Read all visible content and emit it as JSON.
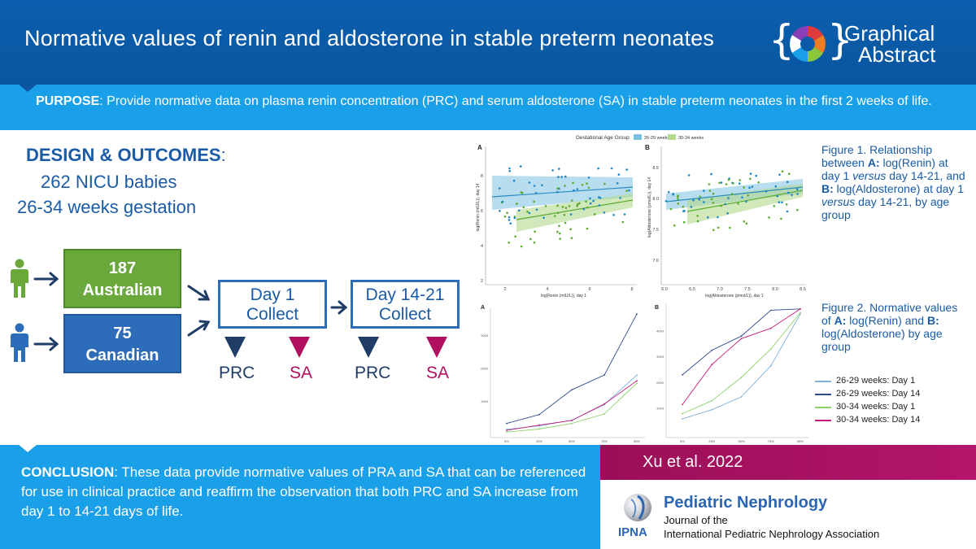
{
  "header": {
    "title": "Normative values of renin and aldosterone in stable preterm neonates",
    "brand_line1": "Graphical",
    "brand_line2": "Abstract"
  },
  "purpose": {
    "label": "PURPOSE",
    "text": ": Provide normative data on plasma renin concentration (PRC) and serum aldosterone (SA) in stable preterm neonates in the first 2 weeks of life."
  },
  "design": {
    "title": "DESIGN & OUTCOMES",
    "colon": ":",
    "line1": "262 NICU babies",
    "line2": "26-34 weeks gestation"
  },
  "cohorts": {
    "australian": {
      "count": "187",
      "label": "Australian"
    },
    "canadian": {
      "count": "75",
      "label": "Canadian"
    }
  },
  "collections": [
    {
      "line1": "Day 1",
      "line2": "Collect"
    },
    {
      "line1": "Day 14-21",
      "line2": "Collect"
    }
  ],
  "measures": [
    "PRC",
    "SA",
    "PRC",
    "SA"
  ],
  "figure1": {
    "legend_title": "Gestational Age Group",
    "legend_items": [
      "26-29 weeks",
      "30-34 weeks"
    ],
    "caption": {
      "p1": "Figure 1. Relationship between ",
      "a": "A:",
      "p2": " log(Renin) at day 1 ",
      "versus1": "versus",
      "p3": " day 14-21, and ",
      "b": "B:",
      "p4": " log(Aldosterone) at day 1 ",
      "versus2": "versus",
      "p5": " day 14-21, by age group"
    },
    "panelA": {
      "label": "A",
      "xlabel": "log(Renin (mIU/L)), day 1",
      "ylabel": "log(Renin (mIU/L)), day 14",
      "xticks": [
        "2",
        "4",
        "6",
        "8"
      ],
      "yticks": [
        "2",
        "4",
        "6",
        "8"
      ]
    },
    "panelB": {
      "label": "B",
      "xlabel": "log(Aldosterone (pmol/L)), day 1",
      "ylabel": "log(Aldosterone (pmol/L)), day 14",
      "xticks": [
        "6.0",
        "6.5",
        "7.0",
        "7.5",
        "8.0",
        "8.5"
      ],
      "yticks": [
        "7.0",
        "7.5",
        "8.0",
        "8.5"
      ]
    }
  },
  "figure2": {
    "caption": {
      "p1": "Figure 2. Normative values of ",
      "a": "A:",
      "p2": " log(Renin) and ",
      "b": "B:",
      "p3": " log(Aldosterone) by age group"
    },
    "panelA_label": "A",
    "panelB_label": "B",
    "legend": [
      {
        "name": "26-29 weeks:  Day 1",
        "color": "#7fb0dc"
      },
      {
        "name": "26-29 weeks:  Day 14",
        "color": "#2e4a8c"
      },
      {
        "name": "30-34 weeks:  Day 1",
        "color": "#8fd16a"
      },
      {
        "name": "30-34 weeks:  Day 14",
        "color": "#c41c7a"
      }
    ]
  },
  "chart_data": [
    {
      "type": "line",
      "panel": "Figure 2A",
      "categories": [
        "5%",
        "25%",
        "50%",
        "75%",
        "95%"
      ],
      "ylim": [
        0,
        3800
      ],
      "series": [
        {
          "name": "26-29 weeks:  Day 1",
          "values": [
            150,
            260,
            430,
            900,
            1800
          ]
        },
        {
          "name": "26-29 weeks:  Day 14",
          "values": [
            330,
            600,
            1350,
            1800,
            3650
          ]
        },
        {
          "name": "30-34 weeks:  Day 1",
          "values": [
            70,
            160,
            330,
            620,
            1550
          ]
        },
        {
          "name": "30-34 weeks:  Day 14",
          "values": [
            120,
            280,
            420,
            920,
            1620
          ]
        }
      ]
    },
    {
      "type": "line",
      "panel": "Figure 2B",
      "categories": [
        "5%",
        "25%",
        "50%",
        "75%",
        "95%"
      ],
      "ylim": [
        0,
        5000
      ],
      "series": [
        {
          "name": "26-29 weeks:  Day 1",
          "values": [
            600,
            950,
            1450,
            2650,
            4650
          ]
        },
        {
          "name": "26-29 weeks:  Day 14",
          "values": [
            2300,
            3250,
            3800,
            4800,
            4850
          ]
        },
        {
          "name": "30-34 weeks:  Day 1",
          "values": [
            800,
            1300,
            2200,
            3300,
            4700
          ]
        },
        {
          "name": "30-34 weeks:  Day 14",
          "values": [
            1150,
            2700,
            3700,
            4100,
            4850
          ]
        }
      ]
    }
  ],
  "conclusion": {
    "label": "CONCLUSION",
    "text": ": These data provide normative values of PRA and SA that can be referenced for use in clinical practice and reaffirm the observation that both PRC and SA increase from day 1 to 14-21 days of life."
  },
  "citation": "Xu et al. 2022",
  "journal": {
    "name": "Pediatric Nephrology",
    "line1": "Journal of the",
    "line2": "International  Pediatric Nephrology Association",
    "society_abbrev": "IPNA"
  },
  "colors": {
    "header_blue": "#0a56a0",
    "band_blue": "#1aa0e8",
    "text_blue": "#1a5ba6",
    "green": "#6aa83c",
    "magenta": "#b0105e",
    "navy": "#1f3d66",
    "blue_series": "#2a8cc4",
    "green_series": "#5aaa2e"
  }
}
